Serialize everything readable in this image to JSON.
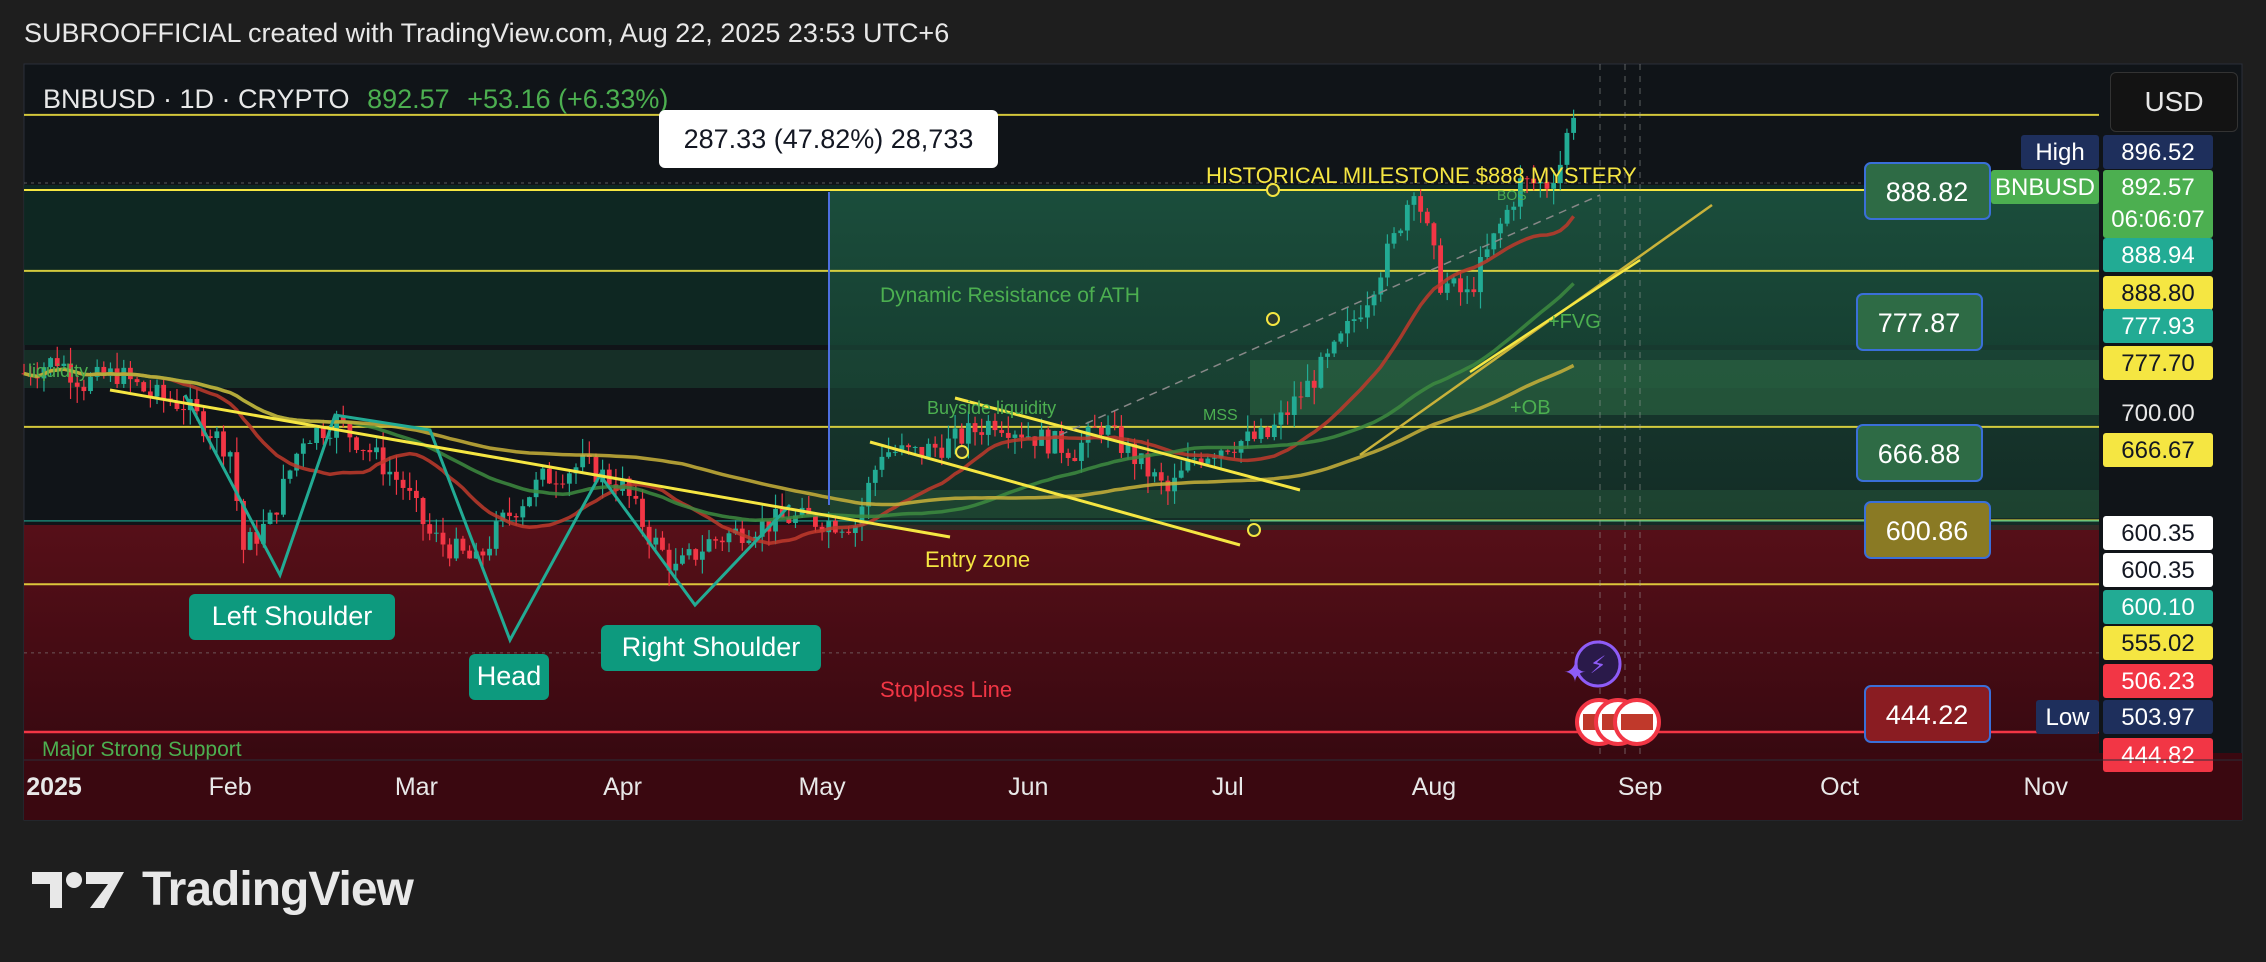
{
  "header": {
    "attribution": "SUBROOFFICIAL created with TradingView.com, Aug 22, 2025 23:53 UTC+6"
  },
  "symbol": {
    "name": "BNBUSD · 1D · CRYPTO",
    "price": "892.57",
    "change": "+53.16 (+6.33%)"
  },
  "currency_button": "USD",
  "measure_label": "287.33 (47.82%) 28,733",
  "brand": {
    "name": "TradingView"
  },
  "colors": {
    "up": "#22ab94",
    "down": "#f23645",
    "yellow_line": "#f5e642",
    "accent_green": "#4caf50",
    "support_red": "#f23645"
  },
  "chart_data": {
    "type": "line",
    "title": "",
    "xlabel": "",
    "ylabel": "",
    "x_ticks": [
      "2025",
      "Feb",
      "Mar",
      "Apr",
      "May",
      "Jun",
      "Jul",
      "Aug",
      "Sep",
      "Oct",
      "Nov"
    ],
    "ylim": [
      430,
      925
    ],
    "grid": false,
    "series": [
      {
        "values": [
          {
            "date": "2025-01-01",
            "price": 705
          },
          {
            "date": "2025-01-06",
            "price": 715
          },
          {
            "date": "2025-01-10",
            "price": 698
          },
          {
            "date": "2025-01-15",
            "price": 705
          },
          {
            "date": "2025-01-20",
            "price": 690
          },
          {
            "date": "2025-01-25",
            "price": 683
          },
          {
            "date": "2025-02-01",
            "price": 650
          },
          {
            "date": "2025-02-03",
            "price": 580
          },
          {
            "date": "2025-02-07",
            "price": 600
          },
          {
            "date": "2025-02-12",
            "price": 660
          },
          {
            "date": "2025-02-17",
            "price": 670
          },
          {
            "date": "2025-02-22",
            "price": 650
          },
          {
            "date": "2025-02-27",
            "price": 625
          },
          {
            "date": "2025-03-03",
            "price": 590
          },
          {
            "date": "2025-03-10",
            "price": 570
          },
          {
            "date": "2025-03-14",
            "price": 600
          },
          {
            "date": "2025-03-20",
            "price": 630
          },
          {
            "date": "2025-03-26",
            "price": 640
          },
          {
            "date": "2025-04-01",
            "price": 625
          },
          {
            "date": "2025-04-05",
            "price": 590
          },
          {
            "date": "2025-04-09",
            "price": 565
          },
          {
            "date": "2025-04-14",
            "price": 585
          },
          {
            "date": "2025-04-20",
            "price": 595
          },
          {
            "date": "2025-04-26",
            "price": 602
          },
          {
            "date": "2025-05-01",
            "price": 600
          },
          {
            "date": "2025-05-06",
            "price": 598
          },
          {
            "date": "2025-05-10",
            "price": 650
          },
          {
            "date": "2025-05-15",
            "price": 648
          },
          {
            "date": "2025-05-20",
            "price": 655
          },
          {
            "date": "2025-05-27",
            "price": 672
          },
          {
            "date": "2025-06-02",
            "price": 660
          },
          {
            "date": "2025-06-08",
            "price": 650
          },
          {
            "date": "2025-06-12",
            "price": 668
          },
          {
            "date": "2025-06-17",
            "price": 645
          },
          {
            "date": "2025-06-22",
            "price": 620
          },
          {
            "date": "2025-06-26",
            "price": 645
          },
          {
            "date": "2025-07-01",
            "price": 655
          },
          {
            "date": "2025-07-07",
            "price": 660
          },
          {
            "date": "2025-07-12",
            "price": 690
          },
          {
            "date": "2025-07-17",
            "price": 720
          },
          {
            "date": "2025-07-22",
            "price": 760
          },
          {
            "date": "2025-07-26",
            "price": 800
          },
          {
            "date": "2025-07-29",
            "price": 840
          },
          {
            "date": "2025-08-02",
            "price": 770
          },
          {
            "date": "2025-08-06",
            "price": 760
          },
          {
            "date": "2025-08-10",
            "price": 800
          },
          {
            "date": "2025-08-14",
            "price": 840
          },
          {
            "date": "2025-08-18",
            "price": 840
          },
          {
            "date": "2025-08-20",
            "price": 855
          },
          {
            "date": "2025-08-22",
            "price": 892.57
          }
        ]
      }
    ],
    "horizontal_levels": [
      888.82,
      777.87,
      666.88,
      600.86,
      444.22
    ],
    "level_boxes": [
      "888.82",
      "777.87",
      "666.88",
      "600.86",
      "444.22"
    ],
    "price_axis_labels": [
      {
        "text": "896.52",
        "bg": "#1e2f5c",
        "fg": "#ffffff",
        "tag": "High"
      },
      {
        "text": "892.57",
        "bg": "#4caf50",
        "fg": "#ffffff",
        "tag": "BNBUSD",
        "sub": "06:06:07"
      },
      {
        "text": "888.94",
        "bg": "#22ab94",
        "fg": "#ffffff"
      },
      {
        "text": "888.80",
        "bg": "#f5e642",
        "fg": "#131722"
      },
      {
        "text": "777.93",
        "bg": "#22ab94",
        "fg": "#ffffff"
      },
      {
        "text": "777.70",
        "bg": "#f5e642",
        "fg": "#131722"
      },
      {
        "text": "700.00",
        "bg": "none",
        "fg": "#e8e8e8"
      },
      {
        "text": "666.67",
        "bg": "#f5e642",
        "fg": "#131722"
      },
      {
        "text": "600.35",
        "bg": "#ffffff",
        "fg": "#131722"
      },
      {
        "text": "600.35",
        "bg": "#ffffff",
        "fg": "#131722"
      },
      {
        "text": "600.10",
        "bg": "#22ab94",
        "fg": "#ffffff"
      },
      {
        "text": "555.02",
        "bg": "#f5e642",
        "fg": "#131722"
      },
      {
        "text": "506.23",
        "bg": "#f23645",
        "fg": "#ffffff"
      },
      {
        "text": "503.97",
        "bg": "#1e2f5c",
        "fg": "#ffffff",
        "tag": "Low"
      },
      {
        "text": "444.82",
        "bg": "#f23645",
        "fg": "#ffffff"
      }
    ],
    "annotations": [
      "HISTORICAL MILESTONE $888 MYSTERY",
      "Dynamic Resistance of ATH",
      "liquidity",
      "Buyside liquidity",
      "MSS",
      "BOS",
      "+FVG",
      "+OB",
      "Entry zone",
      "Stoploss Line",
      "Major Strong Support",
      "Left Shoulder",
      "Head",
      "Right Shoulder"
    ]
  }
}
